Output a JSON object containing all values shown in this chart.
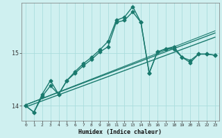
{
  "xlabel": "Humidex (Indice chaleur)",
  "ylabel": "",
  "bg_color": "#cff0f0",
  "line_color": "#1a7a6e",
  "grid_color": "#aadddd",
  "xlim": [
    -0.5,
    23.5
  ],
  "ylim": [
    13.72,
    15.95
  ],
  "yticks": [
    14,
    15
  ],
  "xticks": [
    0,
    1,
    2,
    3,
    4,
    5,
    6,
    7,
    8,
    9,
    10,
    11,
    12,
    13,
    14,
    15,
    16,
    17,
    18,
    19,
    20,
    21,
    22,
    23
  ],
  "series": [
    {
      "x": [
        0,
        1,
        2,
        3,
        4,
        5,
        6,
        7,
        8,
        9,
        10,
        11,
        12,
        13,
        14,
        15,
        16,
        17,
        18,
        19,
        20,
        21,
        22,
        23
      ],
      "y": [
        14.0,
        13.88,
        14.18,
        14.38,
        14.22,
        14.48,
        14.62,
        14.76,
        14.88,
        15.02,
        15.12,
        15.58,
        15.62,
        15.78,
        15.58,
        14.62,
        15.02,
        15.08,
        15.08,
        14.92,
        14.82,
        14.98,
        14.98,
        14.96
      ],
      "marker": "D",
      "markersize": 2.5,
      "linewidth": 1.0
    },
    {
      "x": [
        0,
        1,
        2,
        3,
        4,
        5,
        6,
        7,
        8,
        9,
        10,
        11,
        12,
        13,
        14,
        15,
        16,
        17,
        18,
        19,
        20,
        21,
        22,
        23
      ],
      "y": [
        14.0,
        13.88,
        14.22,
        14.48,
        14.22,
        14.48,
        14.65,
        14.8,
        14.92,
        15.06,
        15.22,
        15.62,
        15.68,
        15.88,
        15.58,
        14.62,
        15.02,
        15.08,
        15.12,
        14.92,
        14.86,
        14.98,
        14.98,
        14.96
      ],
      "marker": "D",
      "markersize": 2.5,
      "linewidth": 1.0
    },
    {
      "x": [
        0,
        23
      ],
      "y": [
        13.98,
        15.3
      ],
      "marker": null,
      "markersize": 0,
      "linewidth": 1.0
    },
    {
      "x": [
        0,
        23
      ],
      "y": [
        14.02,
        15.38
      ],
      "marker": null,
      "markersize": 0,
      "linewidth": 1.0
    },
    {
      "x": [
        0,
        23
      ],
      "y": [
        14.02,
        15.42
      ],
      "marker": null,
      "markersize": 0,
      "linewidth": 0.8
    }
  ]
}
